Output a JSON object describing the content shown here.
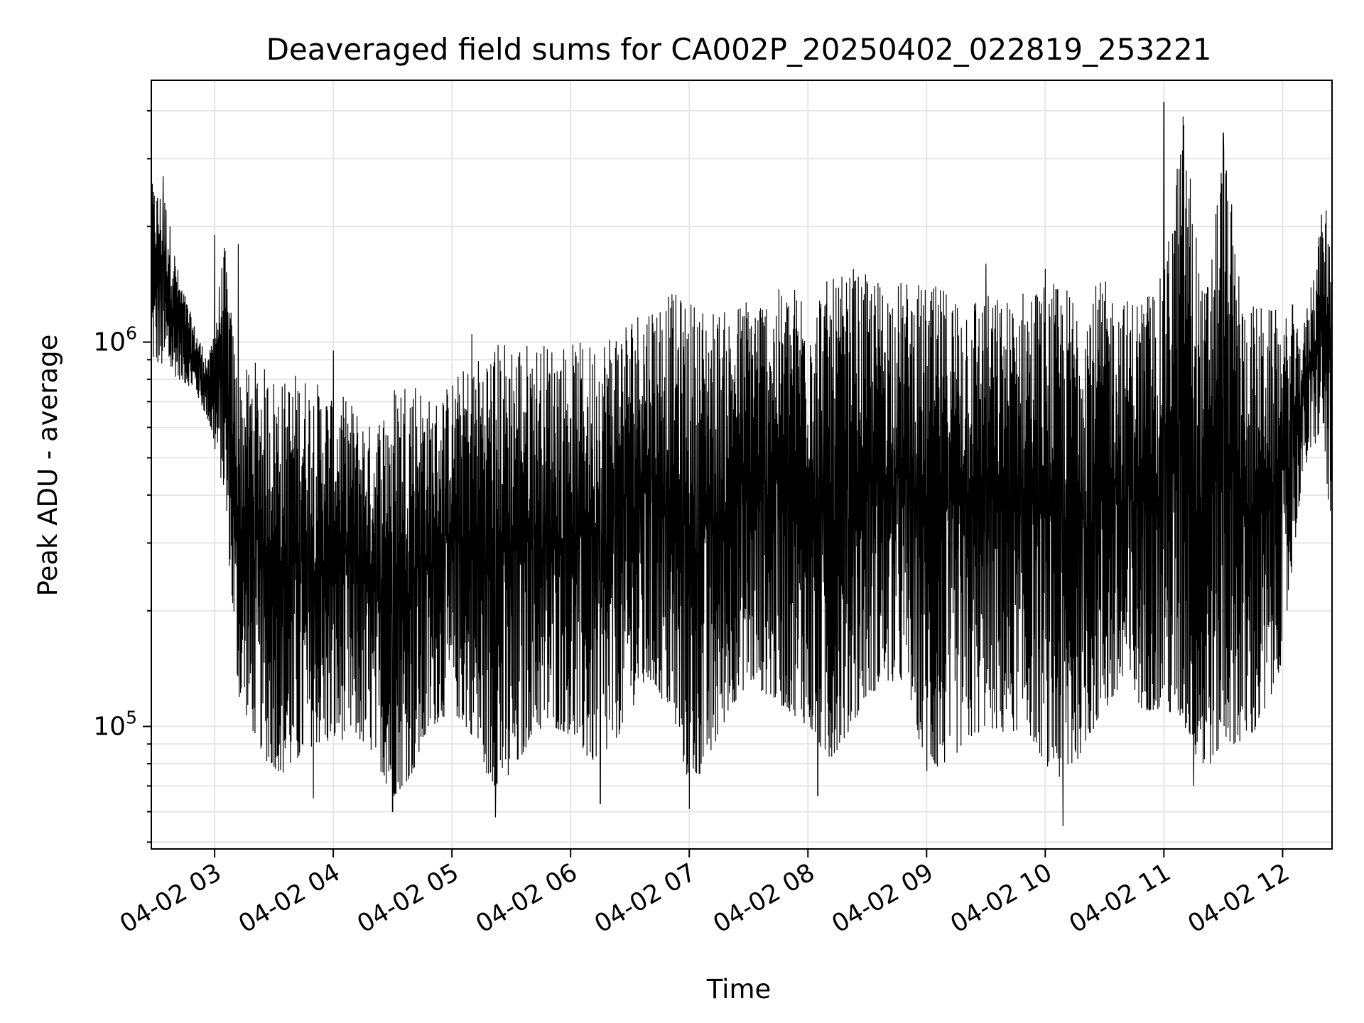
{
  "chart_data": {
    "type": "line",
    "title": "Deaveraged field sums for CA002P_20250402_022819_253221",
    "xlabel": "Time",
    "ylabel": "Peak ADU - average",
    "yscale": "log",
    "grid": true,
    "line_color": "#000000",
    "grid_color": "#e6e6e6",
    "xlim": [
      "2025-04-02 02:28",
      "2025-04-02 12:25"
    ],
    "ylim": [
      48000,
      4800000
    ],
    "x_ticks": [
      {
        "value": "2025-04-02 03:00",
        "label": "04-02 03"
      },
      {
        "value": "2025-04-02 04:00",
        "label": "04-02 04"
      },
      {
        "value": "2025-04-02 05:00",
        "label": "04-02 05"
      },
      {
        "value": "2025-04-02 06:00",
        "label": "04-02 06"
      },
      {
        "value": "2025-04-02 07:00",
        "label": "04-02 07"
      },
      {
        "value": "2025-04-02 08:00",
        "label": "04-02 08"
      },
      {
        "value": "2025-04-02 09:00",
        "label": "04-02 09"
      },
      {
        "value": "2025-04-02 10:00",
        "label": "04-02 10"
      },
      {
        "value": "2025-04-02 11:00",
        "label": "04-02 11"
      },
      {
        "value": "2025-04-02 12:00",
        "label": "04-02 12"
      }
    ],
    "y_ticks": [
      {
        "value": 100000,
        "label_base": "10",
        "label_exp": "5"
      },
      {
        "value": 1000000,
        "label_base": "10",
        "label_exp": "6"
      }
    ],
    "series": [
      {
        "x": [
          "2025-04-02 02:28",
          "2025-04-02 02:35",
          "2025-04-02 02:42",
          "2025-04-02 02:50",
          "2025-04-02 02:57",
          "2025-04-02 03:05",
          "2025-04-02 03:12",
          "2025-04-02 03:20",
          "2025-04-02 03:27",
          "2025-04-02 03:35",
          "2025-04-02 03:42",
          "2025-04-02 03:50",
          "2025-04-02 04:00",
          "2025-04-02 04:10",
          "2025-04-02 04:20",
          "2025-04-02 04:30",
          "2025-04-02 04:40",
          "2025-04-02 04:50",
          "2025-04-02 05:00",
          "2025-04-02 05:10",
          "2025-04-02 05:20",
          "2025-04-02 05:30",
          "2025-04-02 05:40",
          "2025-04-02 05:50",
          "2025-04-02 06:00",
          "2025-04-02 06:10",
          "2025-04-02 06:20",
          "2025-04-02 06:30",
          "2025-04-02 06:40",
          "2025-04-02 06:50",
          "2025-04-02 07:00",
          "2025-04-02 07:10",
          "2025-04-02 07:20",
          "2025-04-02 07:30",
          "2025-04-02 07:40",
          "2025-04-02 07:50",
          "2025-04-02 08:00",
          "2025-04-02 08:10",
          "2025-04-02 08:20",
          "2025-04-02 08:30",
          "2025-04-02 08:40",
          "2025-04-02 08:50",
          "2025-04-02 09:00",
          "2025-04-02 09:10",
          "2025-04-02 09:20",
          "2025-04-02 09:30",
          "2025-04-02 09:40",
          "2025-04-02 09:50",
          "2025-04-02 10:00",
          "2025-04-02 10:10",
          "2025-04-02 10:20",
          "2025-04-02 10:30",
          "2025-04-02 10:40",
          "2025-04-02 10:50",
          "2025-04-02 11:00",
          "2025-04-02 11:10",
          "2025-04-02 11:20",
          "2025-04-02 11:30",
          "2025-04-02 11:40",
          "2025-04-02 11:50",
          "2025-04-02 12:00",
          "2025-04-02 12:10",
          "2025-04-02 12:20",
          "2025-04-02 12:25"
        ],
        "lo": [
          900000,
          850000,
          800000,
          750000,
          620000,
          400000,
          120000,
          95000,
          80000,
          75000,
          80000,
          90000,
          90000,
          95000,
          85000,
          65000,
          75000,
          100000,
          110000,
          95000,
          70000,
          70000,
          95000,
          100000,
          95000,
          80000,
          85000,
          110000,
          130000,
          110000,
          70000,
          80000,
          110000,
          130000,
          120000,
          110000,
          100000,
          80000,
          95000,
          120000,
          130000,
          130000,
          75000,
          80000,
          90000,
          100000,
          95000,
          100000,
          80000,
          70000,
          90000,
          110000,
          120000,
          110000,
          110000,
          100000,
          75000,
          90000,
          90000,
          100000,
          150000,
          450000,
          600000,
          300000
        ],
        "hi": [
          2600000,
          2400000,
          1500000,
          1100000,
          900000,
          1800000,
          800000,
          900000,
          850000,
          800000,
          850000,
          800000,
          750000,
          700000,
          600000,
          800000,
          850000,
          700000,
          800000,
          900000,
          1000000,
          1050000,
          1000000,
          1000000,
          1000000,
          1000000,
          1100000,
          1200000,
          1300000,
          1350000,
          1300000,
          1250000,
          1200000,
          1350000,
          1350000,
          1400000,
          1450000,
          1450000,
          1500000,
          1500000,
          1450000,
          1450000,
          1400000,
          1400000,
          1400000,
          1350000,
          1300000,
          1400000,
          1450000,
          1400000,
          1400000,
          1450000,
          1300000,
          1350000,
          1500000,
          4200000,
          1300000,
          3500000,
          1300000,
          1250000,
          1200000,
          1050000,
          2200000,
          1900000
        ],
        "spikes": [
          {
            "x": "2025-04-02 02:34",
            "y": 2700000
          },
          {
            "x": "2025-04-02 03:00",
            "y": 1900000
          },
          {
            "x": "2025-04-02 03:12",
            "y": 1800000
          },
          {
            "x": "2025-04-02 04:00",
            "y": 950000
          },
          {
            "x": "2025-04-02 05:10",
            "y": 1050000
          },
          {
            "x": "2025-04-02 08:23",
            "y": 1550000
          },
          {
            "x": "2025-04-02 09:30",
            "y": 1600000
          },
          {
            "x": "2025-04-02 10:00",
            "y": 1550000
          },
          {
            "x": "2025-04-02 11:00",
            "y": 4200000
          },
          {
            "x": "2025-04-02 11:30",
            "y": 3500000
          },
          {
            "x": "2025-04-02 12:05",
            "y": 1250000
          },
          {
            "x": "2025-04-02 12:22",
            "y": 2200000
          }
        ],
        "dips": [
          {
            "x": "2025-04-02 03:50",
            "y": 65000
          },
          {
            "x": "2025-04-02 04:30",
            "y": 60000
          },
          {
            "x": "2025-04-02 05:22",
            "y": 58000
          },
          {
            "x": "2025-04-02 06:15",
            "y": 63000
          },
          {
            "x": "2025-04-02 07:00",
            "y": 61000
          },
          {
            "x": "2025-04-02 08:05",
            "y": 66000
          },
          {
            "x": "2025-04-02 10:09",
            "y": 55000
          },
          {
            "x": "2025-04-02 11:15",
            "y": 70000
          }
        ]
      }
    ]
  }
}
